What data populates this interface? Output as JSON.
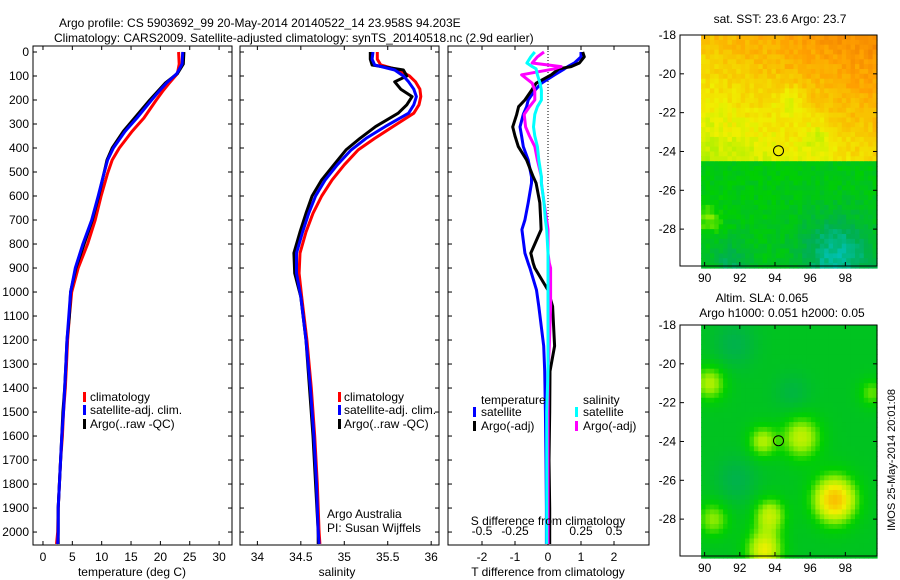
{
  "header": {
    "title_line1": "Argo profile: CS 5903692_99 20-May-2014 20140522_14 23.958S 94.203E",
    "title_line2": "Climatology: CARS2009. Satellite-adjusted climatology: synTS_20140518.nc (2.9d earlier)"
  },
  "credit": {
    "line1": "Argo Australia",
    "line2": "PI: Susan Wijffels"
  },
  "watermark": "IMOS 25-May-2014 20:01:08",
  "colors": {
    "climatology": "#ff0000",
    "satellite": "#0000ff",
    "argo": "#000000",
    "sal_satellite": "#00ffff",
    "sal_argo": "#ff00ff"
  },
  "chart_data": [
    {
      "type": "line",
      "id": "temperature",
      "xlabel": "temperature (deg C)",
      "ylabel": "",
      "xlim": [
        -1.7,
        32.2
      ],
      "ylim": [
        2054,
        -25
      ],
      "xticks": [
        0,
        5,
        10,
        15,
        20,
        25,
        30
      ],
      "yticks": [
        0,
        100,
        200,
        300,
        400,
        500,
        600,
        700,
        800,
        900,
        1000,
        1100,
        1200,
        1300,
        1400,
        1500,
        1600,
        1700,
        1800,
        1900,
        2000
      ],
      "legend": {
        "placement": "center-left",
        "entries": [
          "climatology",
          "satellite-adj. clim.",
          "Argo(..raw -QC)"
        ]
      },
      "depth": [
        0,
        50,
        90,
        130,
        160,
        200,
        275,
        330,
        400,
        450,
        505,
        600,
        700,
        800,
        900,
        1000,
        1100,
        1200,
        1300,
        1400,
        1500,
        1600,
        1700,
        1800,
        1900,
        2000,
        2050
      ],
      "series": [
        {
          "name": "climatology",
          "color": "#ff0000",
          "values": [
            23.1,
            23.2,
            22.9,
            21.5,
            20.5,
            19.3,
            17.2,
            15.2,
            13.0,
            11.8,
            11.0,
            9.9,
            8.9,
            7.6,
            6.0,
            4.9,
            4.5,
            4.2,
            4.0,
            3.8,
            3.5,
            3.3,
            3.0,
            2.8,
            2.6,
            2.5,
            2.3
          ]
        },
        {
          "name": "Argo(..raw -QC)",
          "color": "#000000",
          "values": [
            24.0,
            23.9,
            22.9,
            20.8,
            19.7,
            18.2,
            15.6,
            13.7,
            11.8,
            10.9,
            10.4,
            9.5,
            8.4,
            7.0,
            5.6,
            4.7,
            4.5,
            4.1,
            3.9,
            3.7,
            3.4,
            3.2,
            3.0,
            2.8,
            2.6,
            2.6,
            2.6
          ]
        },
        {
          "name": "satellite-adj. clim.",
          "color": "#0000ff",
          "values": [
            23.8,
            23.7,
            22.8,
            21.0,
            19.9,
            18.5,
            16.0,
            14.0,
            12.0,
            11.0,
            10.4,
            9.4,
            8.3,
            6.8,
            5.5,
            4.7,
            4.4,
            4.1,
            3.9,
            3.7,
            3.5,
            3.2,
            3.0,
            2.8,
            2.6,
            2.6,
            2.5
          ]
        }
      ]
    },
    {
      "type": "line",
      "id": "salinity",
      "xlabel": "salinity",
      "xlim": [
        33.8,
        36.09
      ],
      "ylim": [
        2054,
        -25
      ],
      "xticks": [
        34,
        34.5,
        35,
        35.5,
        36
      ],
      "legend": {
        "placement": "center-right",
        "entries": [
          "climatology",
          "satellite-adj. clim.",
          "Argo(..raw -QC)"
        ]
      },
      "depth": [
        0,
        30,
        54,
        75,
        100,
        124,
        155,
        186,
        220,
        255,
        311,
        360,
        408,
        470,
        533,
        600,
        672,
        750,
        838,
        922,
        1020,
        1200,
        1400,
        1600,
        1800,
        2000,
        2050
      ],
      "series": [
        {
          "name": "climatology",
          "color": "#ff0000",
          "values": [
            35.38,
            35.38,
            35.42,
            35.62,
            35.75,
            35.82,
            35.87,
            35.88,
            35.86,
            35.8,
            35.56,
            35.35,
            35.16,
            35.0,
            34.86,
            34.74,
            34.64,
            34.56,
            34.49,
            34.48,
            34.51,
            34.57,
            34.62,
            34.66,
            34.69,
            34.71,
            34.72
          ]
        },
        {
          "name": "Argo(..raw -QC)",
          "color": "#000000",
          "values": [
            35.3,
            35.3,
            35.32,
            35.68,
            35.72,
            35.58,
            35.65,
            35.78,
            35.72,
            35.62,
            35.36,
            35.18,
            35.02,
            34.88,
            34.74,
            34.63,
            34.56,
            34.49,
            34.42,
            34.43,
            34.5,
            34.56,
            34.6,
            34.64,
            34.67,
            34.7,
            34.7
          ]
        },
        {
          "name": "satellite-adj. clim.",
          "color": "#0000ff",
          "values": [
            35.33,
            35.32,
            35.35,
            35.58,
            35.68,
            35.74,
            35.8,
            35.83,
            35.8,
            35.74,
            35.47,
            35.25,
            35.08,
            34.92,
            34.78,
            34.67,
            34.59,
            34.52,
            34.45,
            34.45,
            34.5,
            34.56,
            34.61,
            34.65,
            34.68,
            34.7,
            34.71
          ]
        }
      ]
    },
    {
      "type": "line",
      "id": "differences",
      "xlabel": "T difference from climatology",
      "x2label": "S difference from climatology",
      "xlim": [
        -3.03,
        3.06
      ],
      "ylim": [
        2054,
        -25
      ],
      "xticks": [
        -2,
        -1,
        0,
        1,
        2
      ],
      "x2ticks": [
        -0.5,
        -0.25,
        0,
        0.25,
        0.5
      ],
      "x2ticklabels": [
        "-0.5",
        "-0.25",
        "0",
        "0.25",
        "0.5"
      ],
      "s_to_t_scale": 4,
      "legend": {
        "placement": "center",
        "temp_title": "temperature",
        "sal_title": "salinity",
        "entries": [
          "satellite",
          "Argo(-adj)",
          "satellite",
          "Argo(-adj)"
        ]
      },
      "depth": [
        0,
        20,
        46,
        61,
        70,
        95,
        130,
        160,
        200,
        228,
        260,
        312,
        350,
        394,
        450,
        520,
        546,
        628,
        700,
        740,
        838,
        880,
        900,
        992,
        1060,
        1225,
        1330,
        1500,
        1700,
        1900,
        2050
      ],
      "series": [
        {
          "name": "T satellite",
          "axis": "T",
          "color": "#0000ff",
          "values": [
            1.0,
            1.0,
            0.8,
            0.6,
            0.5,
            0.2,
            -0.2,
            -0.4,
            -0.6,
            -0.65,
            -0.75,
            -0.85,
            -0.8,
            -0.75,
            -0.6,
            -0.5,
            -0.5,
            -0.6,
            -0.7,
            -0.79,
            -0.7,
            -0.6,
            -0.55,
            -0.35,
            -0.28,
            -0.13,
            -0.1,
            -0.08,
            -0.06,
            -0.05,
            -0.05
          ]
        },
        {
          "name": "T Argo(-adj)",
          "axis": "T",
          "color": "#000000",
          "values": [
            1.05,
            1.1,
            0.95,
            0.7,
            0.33,
            0.1,
            -0.36,
            -0.5,
            -0.7,
            -0.89,
            -0.95,
            -1.07,
            -1.0,
            -0.9,
            -0.65,
            -0.45,
            -0.36,
            -0.25,
            -0.22,
            -0.21,
            -0.52,
            -0.45,
            -0.4,
            0.0,
            0.14,
            0.2,
            0.06,
            0.05,
            0.03,
            0.05,
            0.05
          ]
        },
        {
          "name": "S Argo(-adj)",
          "axis": "S",
          "color": "#ff00ff",
          "values": [
            -0.03,
            -0.08,
            -0.12,
            0.1,
            0.05,
            -0.2,
            -0.12,
            -0.1,
            -0.1,
            -0.14,
            -0.18,
            -0.17,
            -0.14,
            -0.1,
            -0.08,
            -0.05,
            -0.05,
            -0.03,
            -0.01,
            0.0,
            0.0,
            0.01,
            0.02,
            0.02,
            0.02,
            0.01,
            0.0,
            0.0,
            0.0,
            0.0,
            0.0
          ]
        },
        {
          "name": "S satellite",
          "axis": "S",
          "color": "#00ffff",
          "values": [
            -0.1,
            -0.13,
            -0.16,
            -0.12,
            -0.09,
            -0.08,
            -0.06,
            -0.05,
            -0.05,
            -0.08,
            -0.1,
            -0.11,
            -0.1,
            -0.08,
            -0.07,
            -0.05,
            -0.05,
            -0.03,
            -0.02,
            -0.01,
            0.0,
            0.0,
            0.0,
            0.0,
            0.0,
            0.0,
            0.0,
            -0.01,
            -0.01,
            -0.01,
            -0.01
          ]
        }
      ]
    },
    {
      "type": "heatmap",
      "id": "sst_map",
      "title": "sat. SST: 23.6 Argo: 23.7",
      "xlim": [
        88.6,
        99.8
      ],
      "ylim": [
        -29.9,
        -18
      ],
      "xticks": [
        90,
        92,
        94,
        96,
        98
      ],
      "yticks": [
        -18,
        -20,
        -22,
        -24,
        -26,
        -28
      ],
      "marker": {
        "lon": 94.2,
        "lat": -23.96
      }
    },
    {
      "type": "heatmap",
      "id": "sla_map",
      "title": "Altim. SLA: 0.065",
      "subtitle": "Argo h1000: 0.051 h2000: 0.05",
      "xlim": [
        88.6,
        99.8
      ],
      "ylim": [
        -29.9,
        -18
      ],
      "xticks": [
        90,
        92,
        94,
        96,
        98
      ],
      "yticks": [
        -18,
        -20,
        -22,
        -24,
        -26,
        -28
      ],
      "marker": {
        "lon": 94.2,
        "lat": -23.96
      }
    }
  ]
}
